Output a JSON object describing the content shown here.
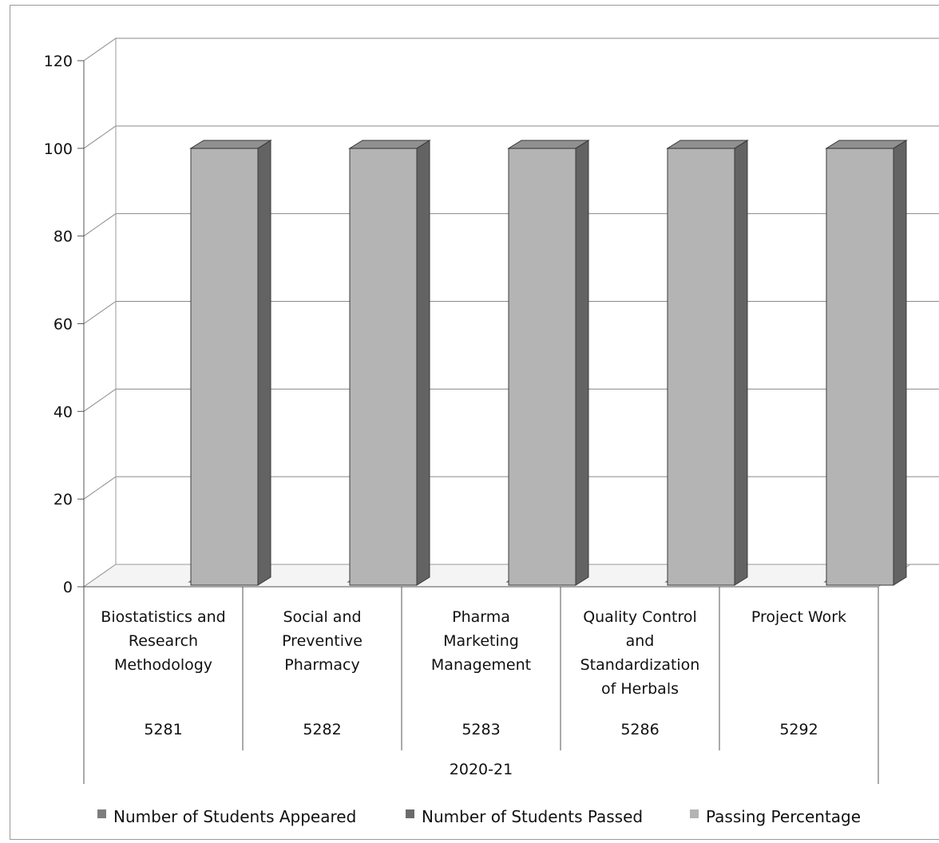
{
  "chart_data": {
    "type": "bar",
    "title": "",
    "xlabel": "",
    "ylabel": "",
    "ylim": [
      0,
      120
    ],
    "yticks": [
      0,
      20,
      40,
      60,
      80,
      100,
      120
    ],
    "y_tick_labels": [
      "0",
      "20",
      "40",
      "60",
      "80",
      "100",
      "120"
    ],
    "grid": true,
    "legend_position": "bottom",
    "group_label": "2020-21",
    "categories": [
      {
        "name_lines": [
          "Biostatistics and",
          "Research",
          "Methodology"
        ],
        "code": "5281"
      },
      {
        "name_lines": [
          "Social and",
          "Preventive",
          "Pharmacy"
        ],
        "code": "5282"
      },
      {
        "name_lines": [
          "Pharma",
          "Marketing",
          "Management"
        ],
        "code": "5283"
      },
      {
        "name_lines": [
          "Quality Control",
          "and",
          "Standardization",
          "of Herbals"
        ],
        "code": "5286"
      },
      {
        "name_lines": [
          "Project Work"
        ],
        "code": "5292"
      }
    ],
    "series": [
      {
        "name": "Number of Students Appeared",
        "color": "#7d7d7d",
        "values": [
          0,
          0,
          0,
          0,
          0
        ]
      },
      {
        "name": "Number of Students Passed",
        "color": "#6b6b6b",
        "values": [
          0,
          0,
          0,
          0,
          0
        ]
      },
      {
        "name": "Passing Percentage",
        "color": "#b4b4b4",
        "values": [
          100,
          100,
          100,
          100,
          100
        ]
      }
    ]
  }
}
